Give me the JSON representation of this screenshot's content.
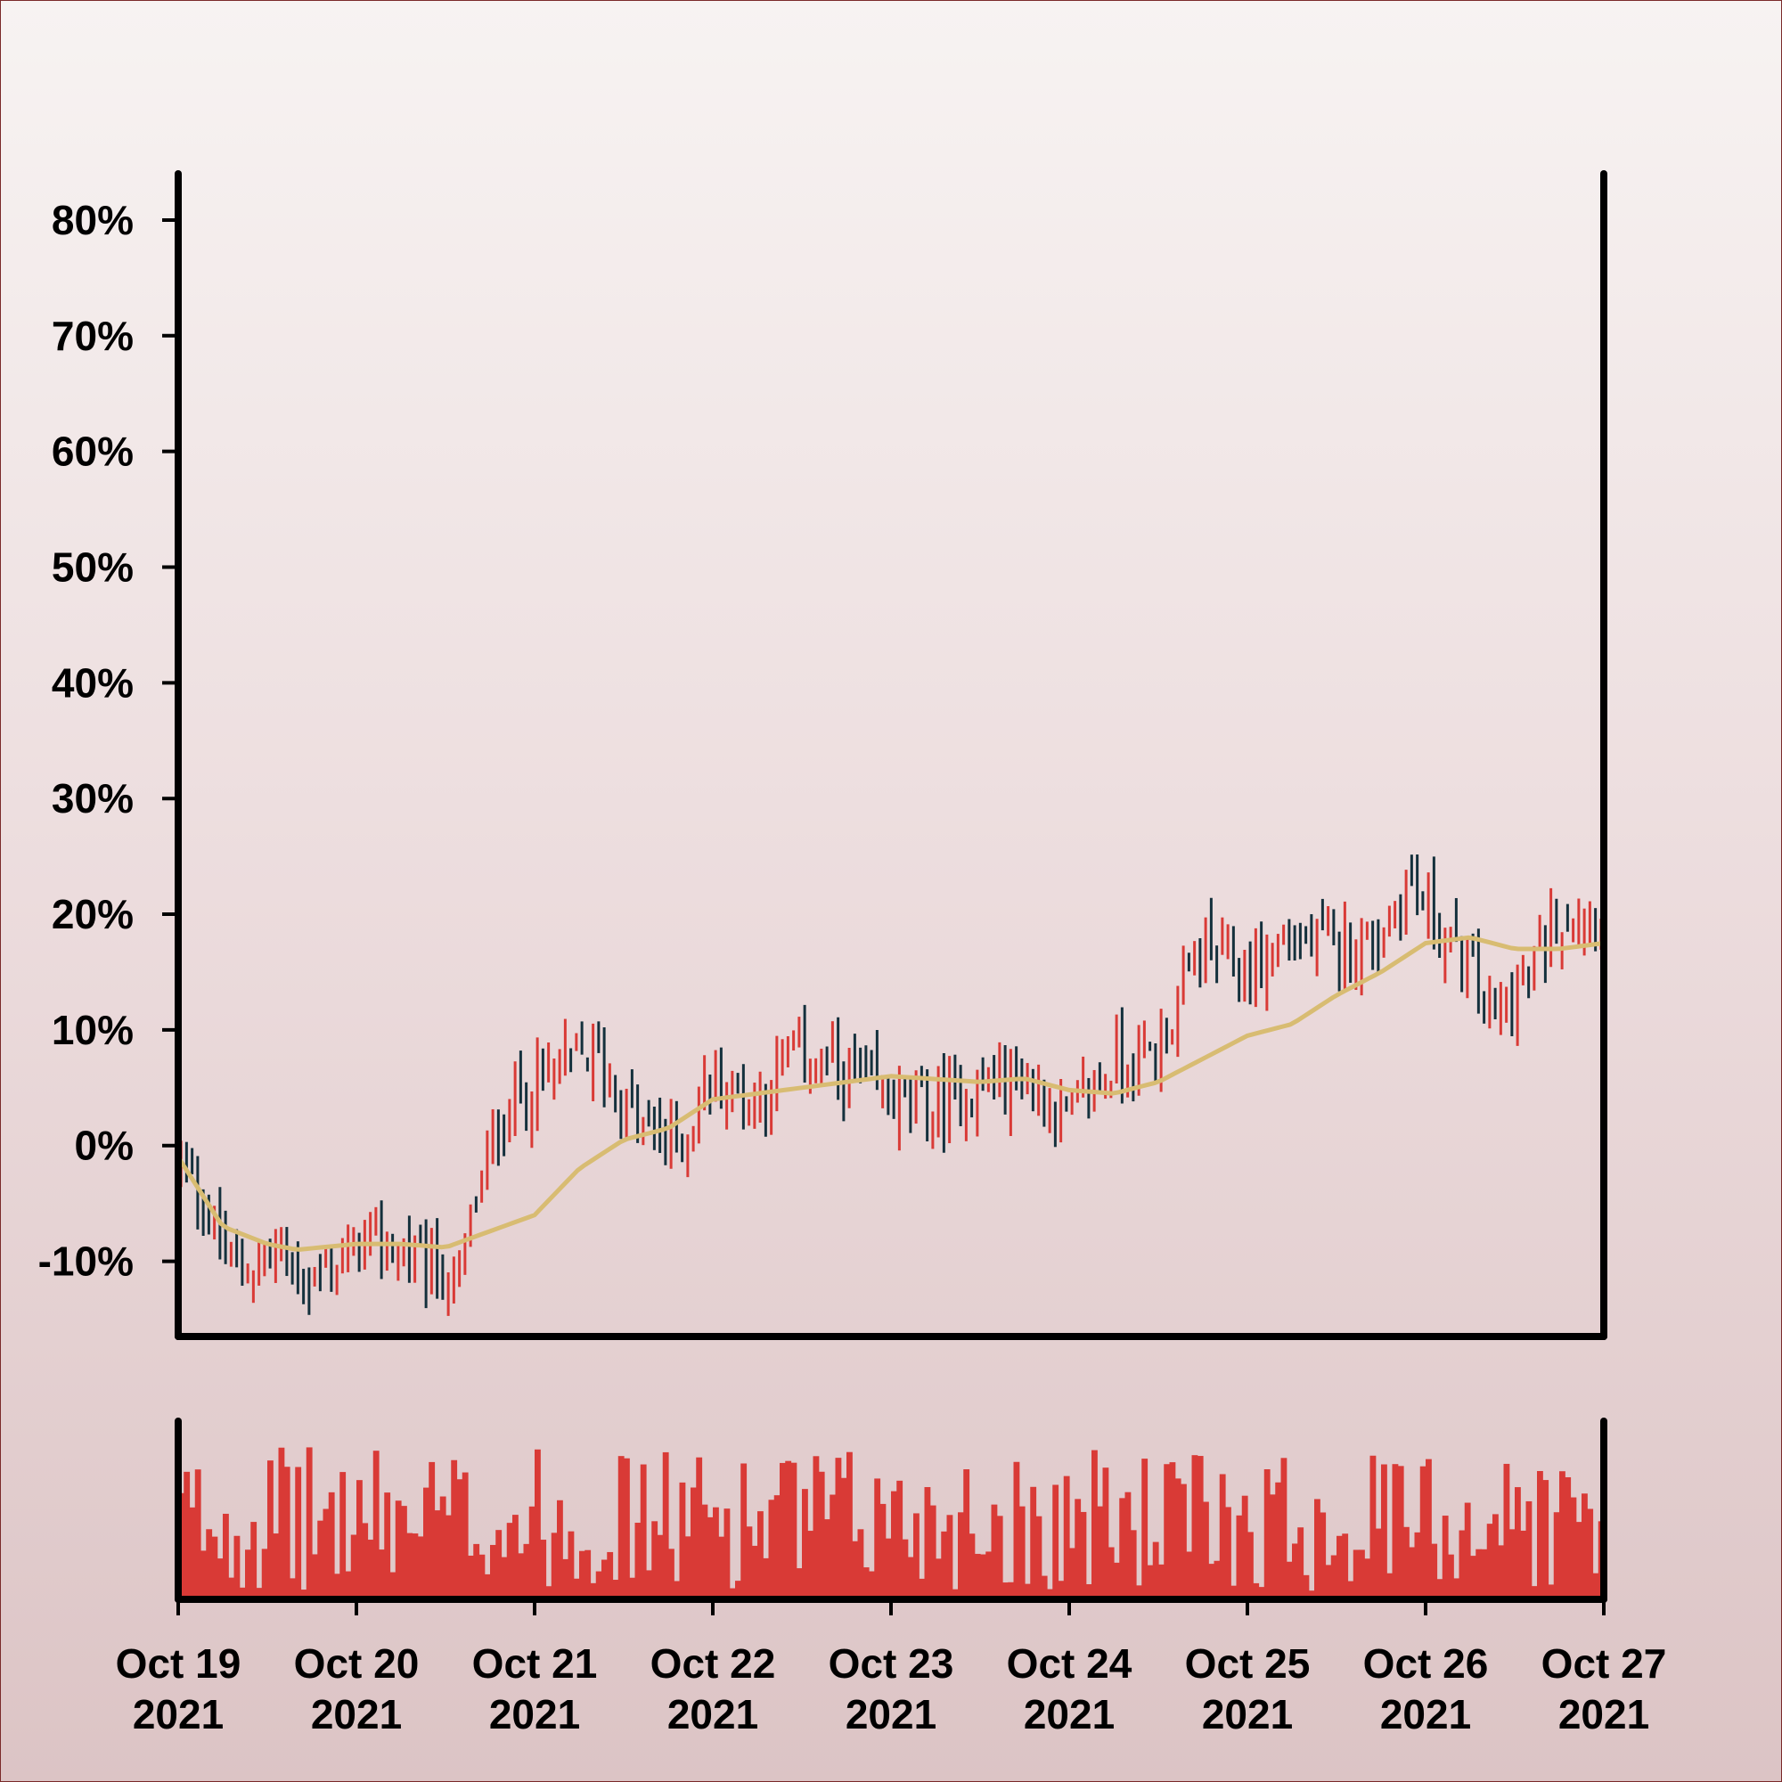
{
  "chart_data": {
    "type": "ohlc",
    "title": "",
    "ylabel": "",
    "xlabel": "",
    "y_unit": "%",
    "ylim": [
      -16.5,
      84
    ],
    "y_ticks": [
      {
        "value": 80,
        "label": "80%"
      },
      {
        "value": 70,
        "label": "70%"
      },
      {
        "value": 60,
        "label": "60%"
      },
      {
        "value": 50,
        "label": "50%"
      },
      {
        "value": 40,
        "label": "40%"
      },
      {
        "value": 30,
        "label": "30%"
      },
      {
        "value": 20,
        "label": "20%"
      },
      {
        "value": 10,
        "label": "10%"
      },
      {
        "value": 0,
        "label": "0%"
      },
      {
        "value": -10,
        "label": "-10%"
      }
    ],
    "x_range": [
      "2021-10-19",
      "2021-10-27"
    ],
    "x_ticks": [
      {
        "date": "2021-10-19",
        "line1": "Oct 19",
        "line2": "2021"
      },
      {
        "date": "2021-10-20",
        "line1": "Oct 20",
        "line2": "2021"
      },
      {
        "date": "2021-10-21",
        "line1": "Oct 21",
        "line2": "2021"
      },
      {
        "date": "2021-10-22",
        "line1": "Oct 22",
        "line2": "2021"
      },
      {
        "date": "2021-10-23",
        "line1": "Oct 23",
        "line2": "2021"
      },
      {
        "date": "2021-10-24",
        "line1": "Oct 24",
        "line2": "2021"
      },
      {
        "date": "2021-10-25",
        "line1": "Oct 25",
        "line2": "2021"
      },
      {
        "date": "2021-10-26",
        "line1": "Oct 26",
        "line2": "2021"
      },
      {
        "date": "2021-10-27",
        "line1": "Oct 27",
        "line2": "2021"
      }
    ],
    "colors": {
      "up": "#d93a36",
      "down": "#14303c",
      "moving_average": "#d8bc72",
      "volume": "#d93a36",
      "axes": "#000000"
    },
    "grid": false,
    "series": [
      {
        "kind": "ohlc",
        "interval_hours": 0.75,
        "close_anchors": [
          {
            "date": "2021-10-19 00:00",
            "value": -1
          },
          {
            "date": "2021-10-19 03:00",
            "value": -4
          },
          {
            "date": "2021-10-19 08:00",
            "value": -11
          },
          {
            "date": "2021-10-19 14:00",
            "value": -9
          },
          {
            "date": "2021-10-19 18:00",
            "value": -12
          },
          {
            "date": "2021-10-20 02:00",
            "value": -8
          },
          {
            "date": "2021-10-20 09:00",
            "value": -10
          },
          {
            "date": "2021-10-20 14:00",
            "value": -12
          },
          {
            "date": "2021-10-20 16:00",
            "value": -6
          },
          {
            "date": "2021-10-20 20:00",
            "value": 3
          },
          {
            "date": "2021-10-21 02:00",
            "value": 6
          },
          {
            "date": "2021-10-21 08:00",
            "value": 8
          },
          {
            "date": "2021-10-21 14:00",
            "value": 2
          },
          {
            "date": "2021-10-21 20:00",
            "value": 0
          },
          {
            "date": "2021-10-22 00:00",
            "value": 6
          },
          {
            "date": "2021-10-22 06:00",
            "value": 4
          },
          {
            "date": "2021-10-22 12:00",
            "value": 8
          },
          {
            "date": "2021-10-22 18:00",
            "value": 6
          },
          {
            "date": "2021-10-23 00:00",
            "value": 4
          },
          {
            "date": "2021-10-23 06:00",
            "value": 3
          },
          {
            "date": "2021-10-23 12:00",
            "value": 5
          },
          {
            "date": "2021-10-23 18:00",
            "value": 6
          },
          {
            "date": "2021-10-24 00:00",
            "value": 2
          },
          {
            "date": "2021-10-24 06:00",
            "value": 7
          },
          {
            "date": "2021-10-24 12:00",
            "value": 8
          },
          {
            "date": "2021-10-24 18:00",
            "value": 17
          },
          {
            "date": "2021-10-25 00:00",
            "value": 15
          },
          {
            "date": "2021-10-25 06:00",
            "value": 18
          },
          {
            "date": "2021-10-25 12:00",
            "value": 17
          },
          {
            "date": "2021-10-25 18:00",
            "value": 18
          },
          {
            "date": "2021-10-25 22:00",
            "value": 23
          },
          {
            "date": "2021-10-26 04:00",
            "value": 17
          },
          {
            "date": "2021-10-26 10:00",
            "value": 11
          },
          {
            "date": "2021-10-26 14:00",
            "value": 14
          },
          {
            "date": "2021-10-26 18:00",
            "value": 20
          },
          {
            "date": "2021-10-27 00:00",
            "value": 20
          }
        ]
      },
      {
        "kind": "moving_average",
        "values": [
          {
            "date": "2021-10-19 00:00",
            "value": -1
          },
          {
            "date": "2021-10-19 06:00",
            "value": -7
          },
          {
            "date": "2021-10-19 12:00",
            "value": -8.5
          },
          {
            "date": "2021-10-19 16:00",
            "value": -9
          },
          {
            "date": "2021-10-20 00:00",
            "value": -8.5
          },
          {
            "date": "2021-10-20 06:00",
            "value": -8.5
          },
          {
            "date": "2021-10-20 12:00",
            "value": -8.8
          },
          {
            "date": "2021-10-21 00:00",
            "value": -6
          },
          {
            "date": "2021-10-21 06:00",
            "value": -2
          },
          {
            "date": "2021-10-21 12:00",
            "value": 0.5
          },
          {
            "date": "2021-10-21 18:00",
            "value": 1.5
          },
          {
            "date": "2021-10-22 00:00",
            "value": 4
          },
          {
            "date": "2021-10-22 06:00",
            "value": 4.5
          },
          {
            "date": "2021-10-22 12:00",
            "value": 5
          },
          {
            "date": "2021-10-22 18:00",
            "value": 5.5
          },
          {
            "date": "2021-10-23 00:00",
            "value": 6
          },
          {
            "date": "2021-10-23 12:00",
            "value": 5.5
          },
          {
            "date": "2021-10-23 18:00",
            "value": 5.8
          },
          {
            "date": "2021-10-24 00:00",
            "value": 4.8
          },
          {
            "date": "2021-10-24 06:00",
            "value": 4.5
          },
          {
            "date": "2021-10-24 12:00",
            "value": 5.5
          },
          {
            "date": "2021-10-24 18:00",
            "value": 7.5
          },
          {
            "date": "2021-10-25 00:00",
            "value": 9.5
          },
          {
            "date": "2021-10-25 06:00",
            "value": 10.5
          },
          {
            "date": "2021-10-25 12:00",
            "value": 13
          },
          {
            "date": "2021-10-25 18:00",
            "value": 15
          },
          {
            "date": "2021-10-26 00:00",
            "value": 17.5
          },
          {
            "date": "2021-10-26 06:00",
            "value": 18
          },
          {
            "date": "2021-10-26 12:00",
            "value": 17
          },
          {
            "date": "2021-10-26 18:00",
            "value": 17
          },
          {
            "date": "2021-10-27 00:00",
            "value": 17.5
          }
        ]
      },
      {
        "kind": "volume",
        "relative_scale": [
          0,
          1
        ]
      }
    ]
  }
}
